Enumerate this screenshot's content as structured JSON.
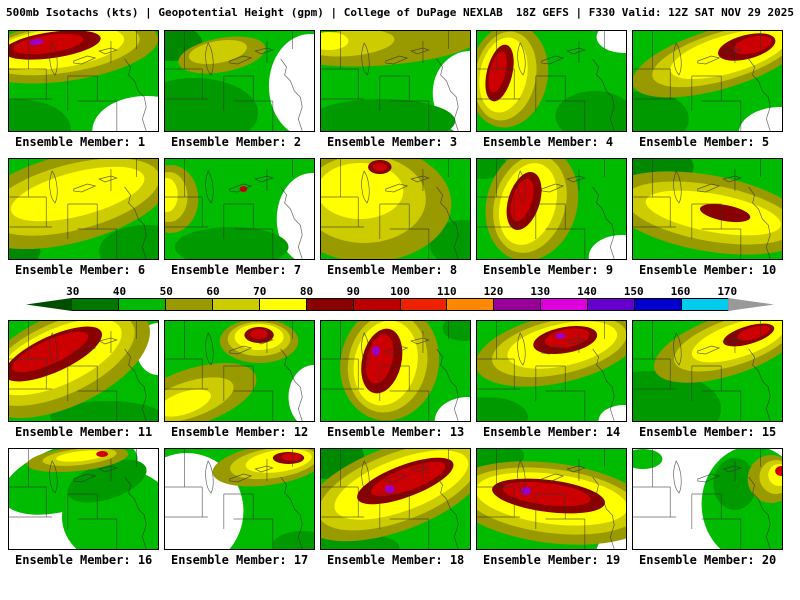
{
  "header": {
    "left": "500mb Isotachs (kts) | Geopotential Height (gpm) | College of DuPage NEXLAB",
    "right": "18Z GEFS | F330 Valid: 12Z SAT NOV 29 2025"
  },
  "colorbar": {
    "unit": "kts",
    "ticks": [
      30,
      40,
      50,
      60,
      70,
      80,
      90,
      100,
      110,
      120,
      130,
      140,
      150,
      160,
      170
    ],
    "colors": [
      "#004d00",
      "#007700",
      "#00bb00",
      "#999900",
      "#cccc00",
      "#ffff00",
      "#880000",
      "#bb0000",
      "#ee2200",
      "#ff8800",
      "#990099",
      "#dd00dd",
      "#6600cc",
      "#0000cc",
      "#00ccee",
      "#999999"
    ]
  },
  "members": [
    {
      "num": 1,
      "label": "Ensemble Member: 1",
      "bg": "#00bb00",
      "bands": [
        [
          140,
          100,
          55,
          35,
          0,
          "#ffffff"
        ],
        [
          8,
          98,
          55,
          30,
          0,
          "#009900"
        ],
        [
          58,
          20,
          95,
          30,
          -8,
          "#999900"
        ],
        [
          54,
          18,
          80,
          24,
          -8,
          "#cccc00"
        ],
        [
          50,
          17,
          68,
          20,
          -8,
          "#ffff00"
        ],
        [
          44,
          14,
          50,
          13,
          -8,
          "#880000"
        ],
        [
          40,
          13,
          36,
          9,
          -8,
          "#cc0000"
        ],
        [
          28,
          11,
          7,
          3,
          -8,
          "#9900cc"
        ]
      ]
    },
    {
      "num": 2,
      "label": "Ensemble Member: 2",
      "bg": "#00bb00",
      "bands": [
        [
          148,
          55,
          42,
          52,
          0,
          "#ffffff"
        ],
        [
          30,
          82,
          65,
          35,
          0,
          "#009900"
        ],
        [
          8,
          12,
          30,
          18,
          0,
          "#008800"
        ],
        [
          58,
          24,
          45,
          17,
          -10,
          "#999900"
        ],
        [
          54,
          21,
          30,
          11,
          -10,
          "#cccc00"
        ]
      ]
    },
    {
      "num": 3,
      "label": "Ensemble Member: 3",
      "bg": "#00bb00",
      "bands": [
        [
          152,
          62,
          38,
          42,
          0,
          "#ffffff"
        ],
        [
          62,
          90,
          75,
          22,
          0,
          "#009900"
        ],
        [
          68,
          14,
          95,
          20,
          -5,
          "#999900"
        ],
        [
          30,
          12,
          45,
          13,
          -5,
          "#cccc00"
        ],
        [
          8,
          10,
          20,
          9,
          0,
          "#ffff00"
        ]
      ]
    },
    {
      "num": 4,
      "label": "Ensemble Member: 4",
      "bg": "#00bb00",
      "bands": [
        [
          150,
          6,
          28,
          16,
          0,
          "#ffffff"
        ],
        [
          120,
          85,
          40,
          25,
          0,
          "#009900"
        ],
        [
          32,
          45,
          40,
          52,
          12,
          "#999900"
        ],
        [
          29,
          45,
          31,
          45,
          12,
          "#cccc00"
        ],
        [
          27,
          44,
          24,
          38,
          12,
          "#ffff00"
        ],
        [
          23,
          42,
          13,
          29,
          14,
          "#880000"
        ],
        [
          21,
          41,
          8,
          21,
          14,
          "#cc0000"
        ]
      ]
    },
    {
      "num": 5,
      "label": "Ensemble Member: 5",
      "bg": "#00bb00",
      "bands": [
        [
          150,
          102,
          42,
          26,
          0,
          "#ffffff"
        ],
        [
          12,
          88,
          45,
          28,
          0,
          "#009900"
        ],
        [
          88,
          28,
          92,
          30,
          -16,
          "#999900"
        ],
        [
          93,
          25,
          76,
          24,
          -16,
          "#cccc00"
        ],
        [
          98,
          23,
          62,
          19,
          -16,
          "#ffff00"
        ],
        [
          116,
          16,
          30,
          12,
          -14,
          "#880000"
        ],
        [
          122,
          14,
          20,
          8,
          -14,
          "#cc0000"
        ]
      ]
    },
    {
      "num": 6,
      "label": "Ensemble Member: 6",
      "bg": "#00bb00",
      "bands": [
        [
          140,
          92,
          48,
          26,
          0,
          "#009900"
        ],
        [
          4,
          92,
          28,
          18,
          0,
          "#008800"
        ],
        [
          62,
          40,
          108,
          44,
          -14,
          "#999900"
        ],
        [
          66,
          38,
          90,
          33,
          -14,
          "#cccc00"
        ],
        [
          70,
          35,
          70,
          22,
          -14,
          "#ffff00"
        ]
      ]
    },
    {
      "num": 7,
      "label": "Ensemble Member: 7",
      "bg": "#00bb00",
      "bands": [
        [
          150,
          60,
          36,
          46,
          0,
          "#ffffff"
        ],
        [
          68,
          88,
          58,
          20,
          0,
          "#009900"
        ],
        [
          6,
          40,
          28,
          34,
          0,
          "#999900"
        ],
        [
          4,
          38,
          19,
          25,
          0,
          "#cccc00"
        ],
        [
          2,
          36,
          11,
          17,
          0,
          "#ffff00"
        ],
        [
          80,
          30,
          4,
          3,
          0,
          "#cc0000"
        ]
      ]
    },
    {
      "num": 8,
      "label": "Ensemble Member: 8",
      "bg": "#00bb00",
      "bands": [
        [
          145,
          85,
          34,
          24,
          0,
          "#009900"
        ],
        [
          48,
          45,
          85,
          58,
          0,
          "#999900"
        ],
        [
          44,
          40,
          63,
          44,
          0,
          "#cccc00"
        ],
        [
          40,
          32,
          44,
          28,
          0,
          "#ffff00"
        ],
        [
          60,
          8,
          12,
          7,
          0,
          "#880000"
        ],
        [
          60,
          8,
          7,
          4,
          0,
          "#cc0000"
        ]
      ]
    },
    {
      "num": 9,
      "label": "Ensemble Member: 9",
      "bg": "#00bb00",
      "bands": [
        [
          148,
          98,
          34,
          22,
          0,
          "#ffffff"
        ],
        [
          6,
          6,
          24,
          14,
          0,
          "#009900"
        ],
        [
          56,
          45,
          46,
          58,
          18,
          "#999900"
        ],
        [
          54,
          45,
          36,
          50,
          18,
          "#cccc00"
        ],
        [
          52,
          45,
          28,
          42,
          18,
          "#ffff00"
        ],
        [
          48,
          42,
          16,
          30,
          18,
          "#880000"
        ],
        [
          46,
          41,
          10,
          22,
          18,
          "#cc0000"
        ]
      ]
    },
    {
      "num": 10,
      "label": "Ensemble Member: 10",
      "bg": "#00bb00",
      "bands": [
        [
          14,
          8,
          48,
          22,
          0,
          "#008800"
        ],
        [
          76,
          54,
          105,
          38,
          10,
          "#999900"
        ],
        [
          79,
          54,
          88,
          28,
          10,
          "#cccc00"
        ],
        [
          82,
          54,
          70,
          19,
          10,
          "#ffff00"
        ],
        [
          94,
          54,
          26,
          8,
          10,
          "#880000"
        ]
      ]
    },
    {
      "num": 11,
      "label": "Ensemble Member: 11",
      "bg": "#00bb00",
      "bands": [
        [
          152,
          28,
          22,
          26,
          0,
          "#ffffff"
        ],
        [
          100,
          96,
          58,
          16,
          0,
          "#009900"
        ],
        [
          55,
          40,
          95,
          46,
          -24,
          "#999900"
        ],
        [
          52,
          38,
          82,
          36,
          -24,
          "#cccc00"
        ],
        [
          50,
          36,
          70,
          28,
          -24,
          "#ffff00"
        ],
        [
          45,
          33,
          54,
          18,
          -24,
          "#880000"
        ],
        [
          42,
          31,
          42,
          12,
          -24,
          "#cc0000"
        ]
      ]
    },
    {
      "num": 12,
      "label": "Ensemble Member: 12",
      "bg": "#00bb00",
      "bands": [
        [
          152,
          76,
          26,
          32,
          0,
          "#ffffff"
        ],
        [
          28,
          76,
          68,
          28,
          -18,
          "#999900"
        ],
        [
          24,
          79,
          48,
          18,
          -18,
          "#cccc00"
        ],
        [
          20,
          82,
          28,
          11,
          -18,
          "#ffff00"
        ],
        [
          96,
          20,
          40,
          22,
          0,
          "#999900"
        ],
        [
          96,
          18,
          32,
          17,
          0,
          "#cccc00"
        ],
        [
          96,
          16,
          25,
          13,
          0,
          "#ffff00"
        ],
        [
          96,
          14,
          15,
          8,
          0,
          "#880000"
        ],
        [
          96,
          13,
          9,
          5,
          0,
          "#cc0000"
        ]
      ]
    },
    {
      "num": 13,
      "label": "Ensemble Member: 13",
      "bg": "#00bb00",
      "bands": [
        [
          150,
          100,
          34,
          24,
          0,
          "#ffffff"
        ],
        [
          146,
          7,
          22,
          13,
          0,
          "#009900"
        ],
        [
          70,
          42,
          50,
          58,
          14,
          "#999900"
        ],
        [
          68,
          42,
          40,
          50,
          14,
          "#cccc00"
        ],
        [
          66,
          42,
          32,
          43,
          14,
          "#ffff00"
        ],
        [
          62,
          40,
          20,
          33,
          14,
          "#880000"
        ],
        [
          60,
          38,
          13,
          25,
          14,
          "#cc0000"
        ],
        [
          56,
          30,
          4,
          5,
          0,
          "#9900cc"
        ]
      ]
    },
    {
      "num": 14,
      "label": "Ensemble Member: 14",
      "bg": "#00bb00",
      "bands": [
        [
          10,
          96,
          42,
          20,
          0,
          "#009900"
        ],
        [
          150,
          100,
          26,
          16,
          0,
          "#ffffff"
        ],
        [
          82,
          28,
          85,
          34,
          -12,
          "#999900"
        ],
        [
          84,
          26,
          70,
          27,
          -12,
          "#cccc00"
        ],
        [
          87,
          24,
          57,
          21,
          -12,
          "#ffff00"
        ],
        [
          90,
          19,
          33,
          13,
          -10,
          "#880000"
        ],
        [
          92,
          17,
          23,
          9,
          -10,
          "#cc0000"
        ],
        [
          85,
          15,
          5,
          3,
          0,
          "#9900cc"
        ]
      ]
    },
    {
      "num": 15,
      "label": "Ensemble Member: 15",
      "bg": "#00bb00",
      "bands": [
        [
          18,
          88,
          72,
          38,
          0,
          "#009900"
        ],
        [
          98,
          24,
          80,
          30,
          -18,
          "#999900"
        ],
        [
          103,
          21,
          64,
          23,
          -18,
          "#cccc00"
        ],
        [
          108,
          19,
          50,
          17,
          -18,
          "#ffff00"
        ],
        [
          118,
          14,
          27,
          9,
          -16,
          "#880000"
        ],
        [
          123,
          12,
          17,
          6,
          -16,
          "#cc0000"
        ]
      ]
    },
    {
      "num": 16,
      "label": "Ensemble Member: 16",
      "bg": "#ffffff",
      "bands": [
        [
          62,
          28,
          72,
          32,
          -18,
          "#00bb00"
        ],
        [
          112,
          68,
          58,
          48,
          0,
          "#00bb00"
        ],
        [
          100,
          32,
          42,
          18,
          -18,
          "#009900"
        ],
        [
          70,
          10,
          52,
          12,
          -6,
          "#999900"
        ],
        [
          72,
          8,
          38,
          8,
          -6,
          "#cccc00"
        ],
        [
          74,
          7,
          26,
          5,
          -6,
          "#ffff00"
        ],
        [
          95,
          5,
          6,
          3,
          0,
          "#cc0000"
        ]
      ]
    },
    {
      "num": 17,
      "label": "Ensemble Member: 17",
      "bg": "#00bb00",
      "bands": [
        [
          22,
          62,
          58,
          58,
          0,
          "#ffffff"
        ],
        [
          140,
          96,
          30,
          14,
          0,
          "#009900"
        ],
        [
          106,
          16,
          58,
          20,
          -8,
          "#999900"
        ],
        [
          111,
          14,
          45,
          15,
          -8,
          "#cccc00"
        ],
        [
          116,
          12,
          34,
          11,
          -8,
          "#ffff00"
        ],
        [
          126,
          9,
          16,
          6,
          0,
          "#880000"
        ],
        [
          129,
          8,
          10,
          4,
          0,
          "#cc0000"
        ]
      ]
    },
    {
      "num": 18,
      "label": "Ensemble Member: 18",
      "bg": "#00bb00",
      "bands": [
        [
          8,
          8,
          36,
          22,
          0,
          "#008800"
        ],
        [
          30,
          98,
          50,
          14,
          0,
          "#009900"
        ],
        [
          76,
          40,
          100,
          42,
          -20,
          "#999900"
        ],
        [
          79,
          38,
          86,
          34,
          -20,
          "#cccc00"
        ],
        [
          82,
          36,
          72,
          26,
          -20,
          "#ffff00"
        ],
        [
          86,
          32,
          52,
          16,
          -20,
          "#880000"
        ],
        [
          89,
          30,
          40,
          11,
          -20,
          "#cc0000"
        ],
        [
          70,
          40,
          5,
          4,
          0,
          "#9900cc"
        ]
      ]
    },
    {
      "num": 19,
      "label": "Ensemble Member: 19",
      "bg": "#00bb00",
      "bands": [
        [
          150,
          102,
          28,
          18,
          0,
          "#ffffff"
        ],
        [
          10,
          7,
          38,
          16,
          0,
          "#009900"
        ],
        [
          76,
          54,
          105,
          40,
          7,
          "#999900"
        ],
        [
          76,
          52,
          90,
          32,
          7,
          "#cccc00"
        ],
        [
          76,
          50,
          78,
          25,
          7,
          "#ffff00"
        ],
        [
          73,
          47,
          58,
          16,
          7,
          "#880000"
        ],
        [
          71,
          45,
          45,
          11,
          7,
          "#cc0000"
        ],
        [
          50,
          42,
          5,
          4,
          0,
          "#9900cc"
        ]
      ]
    },
    {
      "num": 20,
      "label": "Ensemble Member: 20",
      "bg": "#ffffff",
      "bands": [
        [
          122,
          55,
          52,
          58,
          0,
          "#00bb00"
        ],
        [
          10,
          10,
          20,
          10,
          0,
          "#00bb00"
        ],
        [
          104,
          35,
          22,
          26,
          0,
          "#009900"
        ],
        [
          141,
          30,
          24,
          24,
          0,
          "#999900"
        ],
        [
          146,
          28,
          17,
          17,
          0,
          "#cccc00"
        ],
        [
          149,
          26,
          11,
          11,
          0,
          "#ffff00"
        ],
        [
          151,
          22,
          6,
          5,
          0,
          "#cc0000"
        ]
      ]
    }
  ]
}
